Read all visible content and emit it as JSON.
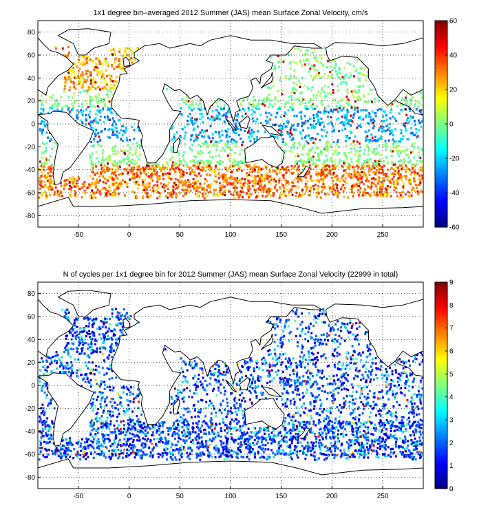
{
  "panels": [
    {
      "title": "1x1 degree bin–averaged 2012 Summer (JAS) mean Surface Zonal Velocity, cm/s",
      "xticks": [
        -50,
        0,
        50,
        100,
        150,
        200,
        250
      ],
      "yticks": [
        80,
        60,
        40,
        20,
        0,
        -20,
        -40,
        -60,
        -80
      ],
      "colorbar": {
        "ticks": [
          60,
          40,
          20,
          0,
          -20,
          -40,
          -60
        ],
        "min": -60,
        "max": 60,
        "colormap": "jet"
      }
    },
    {
      "title": "N of cycles per 1x1 degree bin for 2012 Summer (JAS) mean Surface Zonal Velocity (22999 in total)",
      "xticks": [
        -50,
        0,
        50,
        100,
        150,
        200,
        250
      ],
      "yticks": [
        80,
        60,
        40,
        20,
        0,
        -20,
        -40,
        -60,
        -80
      ],
      "colorbar": {
        "ticks": [
          9,
          8,
          7,
          6,
          5,
          4,
          3,
          2,
          1,
          0
        ],
        "min": 0,
        "max": 9,
        "colormap": "jet"
      }
    }
  ],
  "chart_data": [
    {
      "type": "heatmap",
      "title": "1x1 degree bin–averaged 2012 Summer (JAS) mean Surface Zonal Velocity, cm/s",
      "xlim": [
        -90,
        290
      ],
      "ylim": [
        -90,
        90
      ],
      "clim": [
        -60,
        60
      ],
      "grid": true,
      "colorbar_position": "right",
      "note_values": "sparse gridded bins over ocean; strong eastward flow (~20-50 cm/s) in Southern Ocean 40S-60S and N. Atlantic, westward (~-20 to -40 cm/s) near equator"
    },
    {
      "type": "heatmap",
      "title": "N of cycles per 1x1 degree bin for 2012 Summer (JAS) mean Surface Zonal Velocity (22999 in total)",
      "xlim": [
        -90,
        290
      ],
      "ylim": [
        -90,
        90
      ],
      "clim": [
        0,
        9
      ],
      "grid": true,
      "colorbar_position": "right",
      "total_cycles": 22999
    }
  ]
}
